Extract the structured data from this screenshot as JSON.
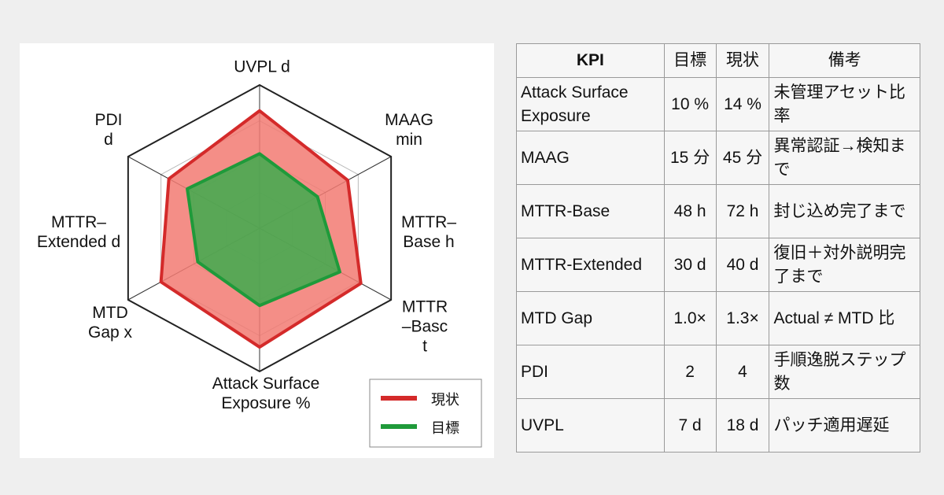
{
  "chart_data": {
    "type": "radar",
    "categories": [
      "UVPL d",
      "MAAG\nmin",
      "MTTR\n–Basc\nt",
      "Attack Surface\nExposure %",
      "MTD\nGap x",
      "PDI\nd"
    ],
    "annotations": [
      "MTTR–\nBase h",
      "MTTR–\nExtended d"
    ],
    "rlim": [
      0,
      1
    ],
    "series": [
      {
        "name": "現状",
        "color": "#d42a2a",
        "fill": "#f27a72",
        "values": [
          0.82,
          0.67,
          0.77,
          0.83,
          0.75,
          0.69
        ]
      },
      {
        "name": "目標",
        "color": "#1f9a3a",
        "fill": "#3dab4e",
        "values": [
          0.52,
          0.44,
          0.61,
          0.54,
          0.47,
          0.55
        ]
      }
    ]
  },
  "table": {
    "header": [
      "KPI",
      "目標",
      "現状",
      "備考"
    ],
    "rows": [
      [
        "Attack Surface Exposure",
        "10 %",
        "14 %",
        "未管理アセット比率"
      ],
      [
        "MAAG",
        "15 分",
        "45 分",
        "異常認証→検知まで"
      ],
      [
        "MTTR-Base",
        "48 h",
        "72 h",
        "封じ込め完了まで"
      ],
      [
        "MTTR-Extended",
        "30 d",
        "40 d",
        "復旧＋対外説明完了まで"
      ],
      [
        "MTD Gap",
        "1.0×",
        "1.3×",
        "Actual ≠ MTD 比"
      ],
      [
        "PDI",
        "2",
        "4",
        "手順逸脱ステップ数"
      ],
      [
        "UVPL",
        "7 d",
        "18 d",
        "パッチ適用遅延"
      ]
    ]
  }
}
